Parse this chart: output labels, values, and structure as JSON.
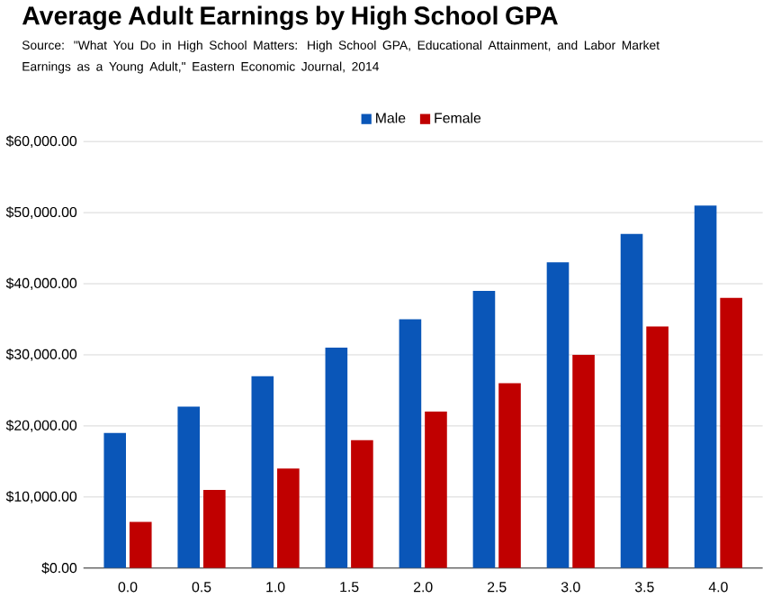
{
  "chart_data": {
    "type": "bar",
    "title": "Average Adult Earnings by High School GPA",
    "subtitle": "Source: \"What You Do in High School Matters: High School GPA, Educational Attainment, and Labor Market Earnings as a Young Adult,\" Eastern Economic Journal, 2014",
    "categories": [
      "0.0",
      "0.5",
      "1.0",
      "1.5",
      "2.0",
      "2.5",
      "3.0",
      "3.5",
      "4.0"
    ],
    "series": [
      {
        "name": "Male",
        "color": "#0a56b8",
        "values": [
          19000,
          22700,
          27000,
          31000,
          35000,
          39000,
          43000,
          47000,
          51000
        ]
      },
      {
        "name": "Female",
        "color": "#c00000",
        "values": [
          6500,
          11000,
          14000,
          18000,
          22000,
          26000,
          30000,
          34000,
          38000
        ]
      }
    ],
    "ylim": [
      0,
      60000
    ],
    "yticks": [
      {
        "value": 0,
        "label": "$0.00"
      },
      {
        "value": 10000,
        "label": "$10,000.00"
      },
      {
        "value": 20000,
        "label": "$20,000.00"
      },
      {
        "value": 30000,
        "label": "$30,000.00"
      },
      {
        "value": 40000,
        "label": "$40,000.00"
      },
      {
        "value": 50000,
        "label": "$50,000.00"
      },
      {
        "value": 60000,
        "label": "$60,000.00"
      }
    ],
    "grid": "y",
    "legend": "top"
  }
}
